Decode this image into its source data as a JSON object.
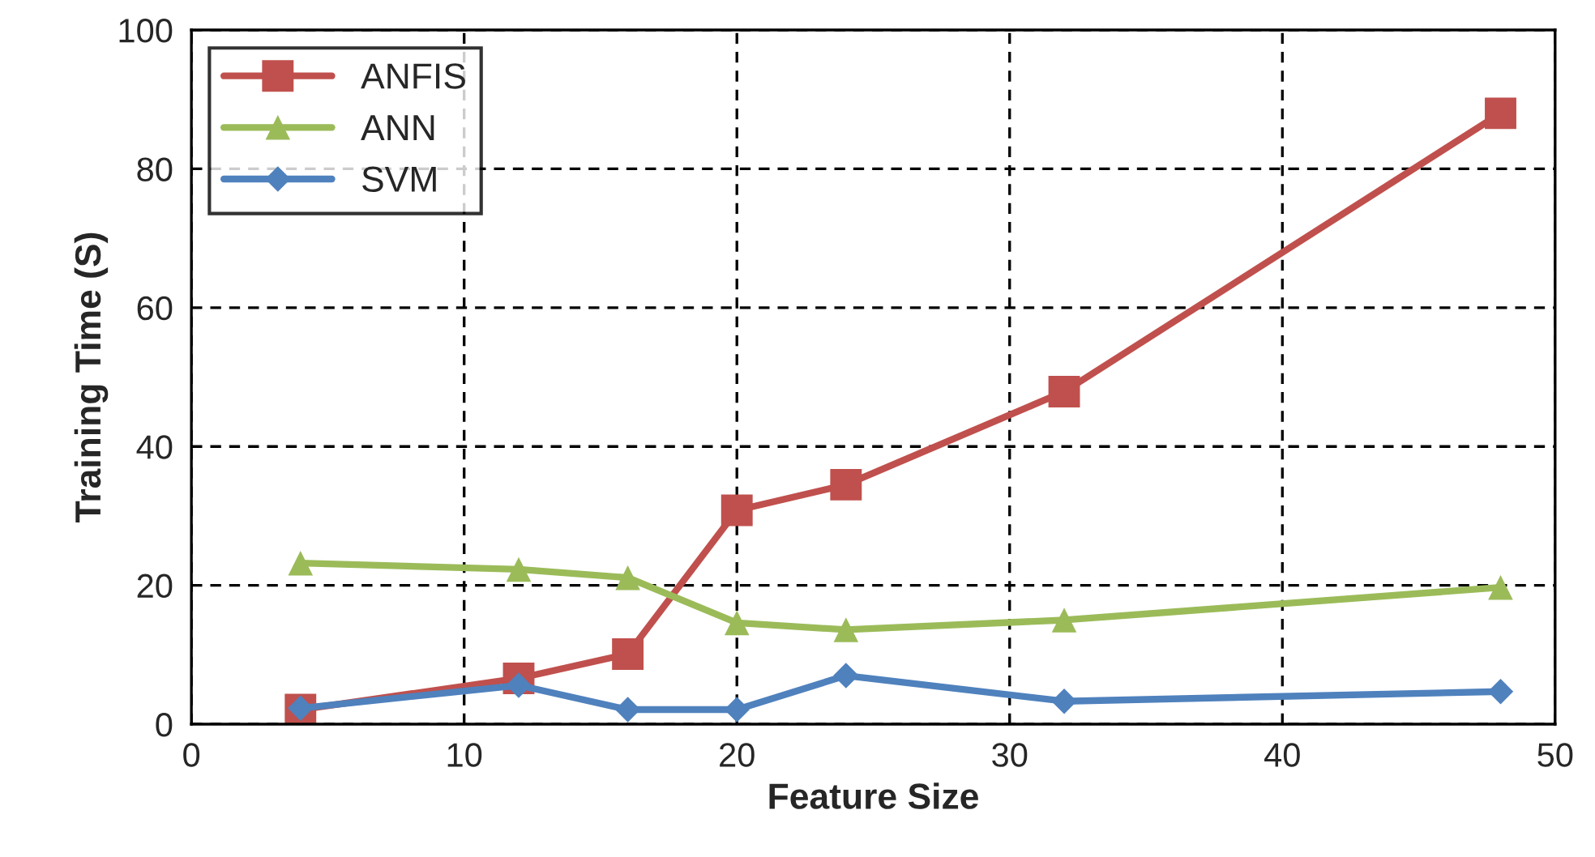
{
  "chart_data": {
    "type": "line",
    "xlabel": "Feature Size",
    "ylabel": "Training Time (S)",
    "x": [
      4,
      12,
      16,
      20,
      24,
      32,
      48
    ],
    "series": [
      {
        "name": "ANFIS",
        "color": "#c0504d",
        "marker": "square",
        "values": [
          2.1,
          6.6,
          10.1,
          30.8,
          34.5,
          47.9,
          88
        ]
      },
      {
        "name": "ANN",
        "color": "#9bbb59",
        "marker": "triangle",
        "values": [
          23.2,
          22.3,
          21.1,
          14.6,
          13.6,
          15,
          19.7
        ]
      },
      {
        "name": "SVM",
        "color": "#4f81bd",
        "marker": "diamond",
        "values": [
          2.3,
          5.6,
          2.1,
          2.1,
          7,
          3.3,
          4.7
        ]
      }
    ],
    "xlim": [
      0,
      50
    ],
    "ylim": [
      0,
      100
    ],
    "xticks": [
      0,
      10,
      20,
      30,
      40,
      50
    ],
    "yticks": [
      0,
      20,
      40,
      60,
      80,
      100
    ],
    "grid": true,
    "legend": "top left",
    "line_style": "solid"
  }
}
